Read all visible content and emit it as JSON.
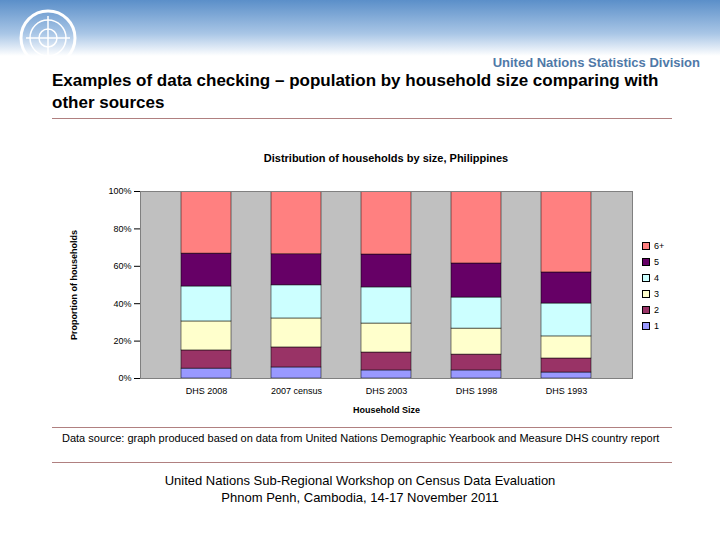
{
  "slide": {
    "header": "United Nations Statistics Division",
    "title": "Examples of data checking – population by household size comparing with other sources",
    "source": "Data source: graph produced based on data from United Nations Demographic Yearbook and Measure DHS country report",
    "footer": [
      "United Nations Sub-Regional Workshop on Census Data Evaluation",
      "Phnom Penh, Cambodia, 14-17 November 2011"
    ]
  },
  "chart_data": {
    "type": "bar",
    "stacked": true,
    "title": "Distribution of households by size, Philippines",
    "x_label": "Household Size",
    "y_label": "Proportion of households",
    "categories": [
      "DHS 2008",
      "2007 census",
      "DHS 2003",
      "DHS 1998",
      "DHS 1993"
    ],
    "series": [
      {
        "name": "1",
        "color": "#9999ff",
        "values": [
          5.3,
          5.9,
          4.3,
          4.3,
          3.2
        ]
      },
      {
        "name": "2",
        "color": "#993366",
        "values": [
          9.7,
          10.7,
          9.6,
          8.5,
          7.5
        ]
      },
      {
        "name": "3",
        "color": "#ffffcc",
        "values": [
          15.5,
          15.5,
          15.5,
          13.9,
          11.8
        ]
      },
      {
        "name": "4",
        "color": "#ccffff",
        "values": [
          18.7,
          17.7,
          19.3,
          16.6,
          17.6
        ]
      },
      {
        "name": "5",
        "color": "#660066",
        "values": [
          17.6,
          16.6,
          17.6,
          18.2,
          16.6
        ]
      },
      {
        "name": "6+",
        "color": "#ff8080",
        "values": [
          33.2,
          33.6,
          33.7,
          38.5,
          43.3
        ]
      }
    ],
    "ylim": [
      0,
      100
    ],
    "yticks": [
      {
        "value": 0,
        "label": "0%"
      },
      {
        "value": 20,
        "label": "20%"
      },
      {
        "value": 40,
        "label": "40%"
      },
      {
        "value": 60,
        "label": "60%"
      },
      {
        "value": 80,
        "label": "80%"
      },
      {
        "value": 100,
        "label": "100%"
      }
    ],
    "grid": false,
    "legend": "right"
  }
}
